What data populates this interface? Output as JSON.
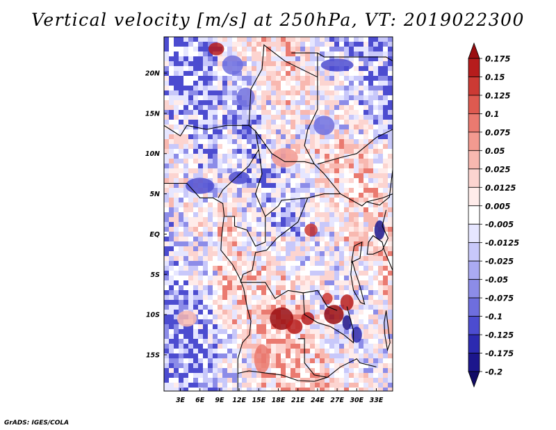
{
  "title": "Vertical velocity [m/s] at 250hPa, VT: 2019022300",
  "footer": "GrADS: IGES/COLA",
  "colors": {
    "dark_red": "#8b0a0a",
    "red": "#c83028",
    "light_red": "#f08c80",
    "pale_red": "#ffd8d4",
    "white": "#ffffff",
    "pale_blue": "#dcdcff",
    "light_blue": "#9090f0",
    "blue": "#4040d0",
    "dark_blue": "#1a1488",
    "coast": "#000000"
  },
  "chart_data": {
    "type": "heatmap",
    "title": "Vertical velocity [m/s] at 250hPa, VT: 2019022300",
    "variable": "Vertical velocity",
    "units": "m/s",
    "level": "250hPa",
    "valid_time": "2019022300",
    "x_ticks": [
      "3E",
      "6E",
      "9E",
      "12E",
      "15E",
      "18E",
      "21E",
      "24E",
      "27E",
      "30E",
      "33E"
    ],
    "x_tick_values": [
      3,
      6,
      9,
      12,
      15,
      18,
      21,
      24,
      27,
      30,
      33
    ],
    "y_ticks": [
      "20N",
      "15N",
      "10N",
      "5N",
      "EQ",
      "5S",
      "10S",
      "15S"
    ],
    "y_tick_values": [
      20,
      15,
      10,
      5,
      0,
      -5,
      -10,
      -15
    ],
    "xlim": [
      0.5,
      35.5
    ],
    "ylim": [
      -19.5,
      24.5
    ],
    "colorbar": {
      "labels": [
        "0.175",
        "0.15",
        "0.125",
        "0.1",
        "0.075",
        "0.05",
        "0.025",
        "0.0125",
        "0.005",
        "-0.005",
        "-0.0125",
        "-0.025",
        "-0.05",
        "-0.075",
        "-0.1",
        "-0.125",
        "-0.175",
        "-0.2"
      ],
      "colors": [
        "#9a0e10",
        "#b61c1c",
        "#cc3a34",
        "#de5a50",
        "#ea7a70",
        "#f39a90",
        "#f8b8b0",
        "#fcd4d0",
        "#ffecea",
        "#ffffff",
        "#e6e6ff",
        "#c8c8fa",
        "#aaaaf2",
        "#8c8ce8",
        "#6e6ede",
        "#4c4cd0",
        "#2c2ab0",
        "#1c168c",
        "#120c66"
      ]
    }
  }
}
